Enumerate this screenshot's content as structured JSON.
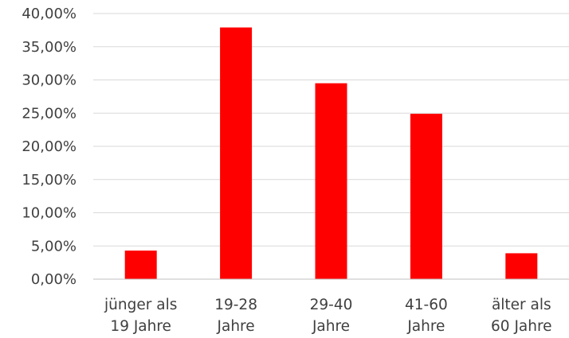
{
  "chart_data": {
    "type": "bar",
    "title": "",
    "xlabel": "",
    "ylabel": "",
    "categories": [
      [
        "jünger als",
        "19 Jahre"
      ],
      [
        "19-28",
        "Jahre"
      ],
      [
        "29-40",
        "Jahre"
      ],
      [
        "41-60",
        "Jahre"
      ],
      [
        "älter als",
        "60 Jahre"
      ]
    ],
    "values": [
      4.3,
      37.9,
      29.5,
      24.9,
      3.9
    ],
    "ylim": [
      0,
      40
    ],
    "yticks": [
      "0,00%",
      "5,00%",
      "10,00%",
      "15,00%",
      "20,00%",
      "25,00%",
      "30,00%",
      "35,00%",
      "40,00%"
    ],
    "grid": true,
    "legend": "none",
    "bar_color": "#ff0000"
  }
}
